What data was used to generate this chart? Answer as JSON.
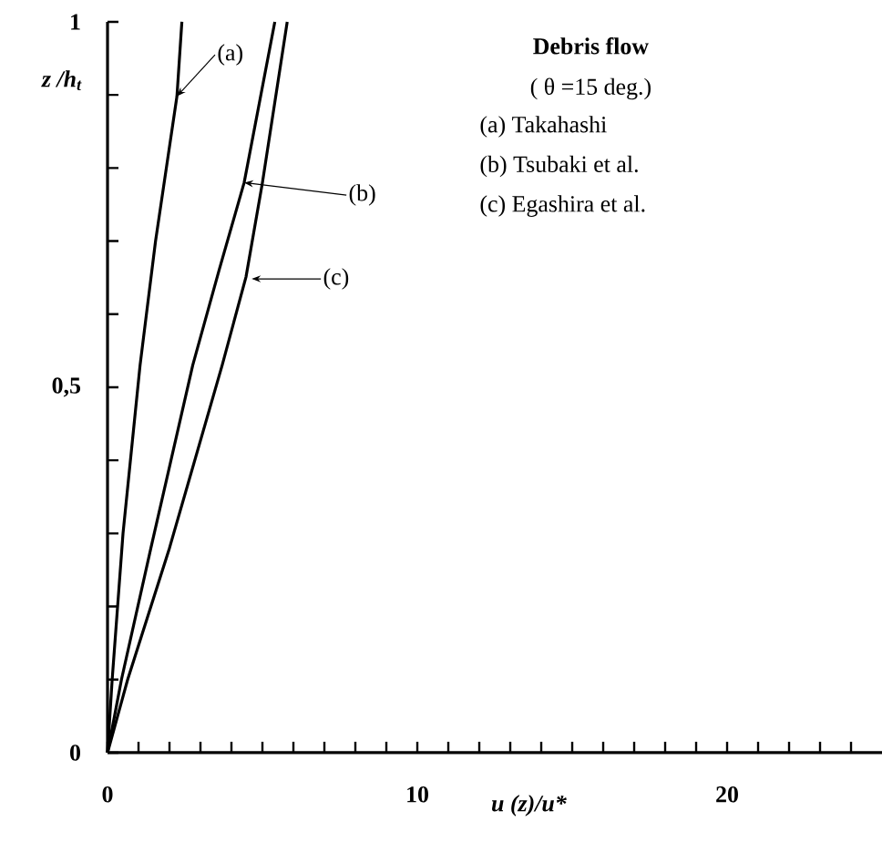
{
  "chart_data": {
    "type": "line",
    "title": "Debris flow",
    "subtitle": "( θ =15 deg.)",
    "xlabel": "u (z)/u*",
    "ylabel": "z /h$_{t}$",
    "xlim": [
      0,
      25
    ],
    "ylim": [
      0,
      1
    ],
    "xticks": [
      0,
      {
        "value": 1,
        "label": null
      },
      {
        "value": 2,
        "label": null
      },
      {
        "value": 3,
        "label": null
      },
      {
        "value": 4,
        "label": null
      },
      {
        "value": 5,
        "label": null
      },
      {
        "value": 6,
        "label": null
      },
      {
        "value": 7,
        "label": null
      },
      {
        "value": 8,
        "label": null
      },
      {
        "value": 9,
        "label": null
      },
      10,
      {
        "value": 11,
        "label": null
      },
      {
        "value": 12,
        "label": null
      },
      {
        "value": 13,
        "label": null
      },
      {
        "value": 14,
        "label": null
      },
      {
        "value": 15,
        "label": null
      },
      {
        "value": 16,
        "label": null
      },
      {
        "value": 17,
        "label": null
      },
      {
        "value": 18,
        "label": null
      },
      {
        "value": 19,
        "label": null
      },
      20,
      {
        "value": 21,
        "label": null
      },
      {
        "value": 22,
        "label": null
      },
      {
        "value": 23,
        "label": null
      },
      {
        "value": 24,
        "label": null
      }
    ],
    "yticks": [
      0,
      {
        "value": 0.1,
        "label": null
      },
      {
        "value": 0.2,
        "label": null
      },
      {
        "value": 0.3,
        "label": null
      },
      {
        "value": 0.4,
        "label": null
      },
      {
        "value": 0.5,
        "label": "0,5"
      },
      {
        "value": 0.6,
        "label": null
      },
      {
        "value": 0.7,
        "label": null
      },
      {
        "value": 0.8,
        "label": null
      },
      {
        "value": 0.9,
        "label": null
      },
      1
    ],
    "grid": false,
    "marker": "none",
    "line_style": "solid",
    "series": [
      {
        "color": "#000000",
        "x": [
          0,
          0.15,
          0.5,
          1.05,
          1.55,
          2.24,
          2.4
        ],
        "values": [
          0,
          0.1,
          0.3,
          0.53,
          0.7,
          0.898,
          1.0
        ]
      },
      {
        "color": "#000000",
        "x": [
          0,
          0.45,
          1.4,
          2.75,
          3.6,
          4.41,
          5.4
        ],
        "values": [
          0,
          0.1,
          0.28,
          0.53,
          0.66,
          0.78,
          1.0
        ]
      },
      {
        "color": "#000000",
        "x": [
          0,
          0.65,
          2.0,
          3.7,
          4.47,
          5.0,
          5.8
        ],
        "values": [
          0,
          0.1,
          0.28,
          0.53,
          0.651,
          0.78,
          1.0
        ]
      }
    ],
    "annotations": [
      "(a) Takahashi",
      "(b) Tsubaki et al.",
      "(c) Egashira et al.",
      {
        "text": "(a)",
        "x": 2.24,
        "y": 0.898
      },
      {
        "text": "(b)",
        "x": 4.41,
        "y": 0.78
      },
      "(c)"
    ]
  }
}
